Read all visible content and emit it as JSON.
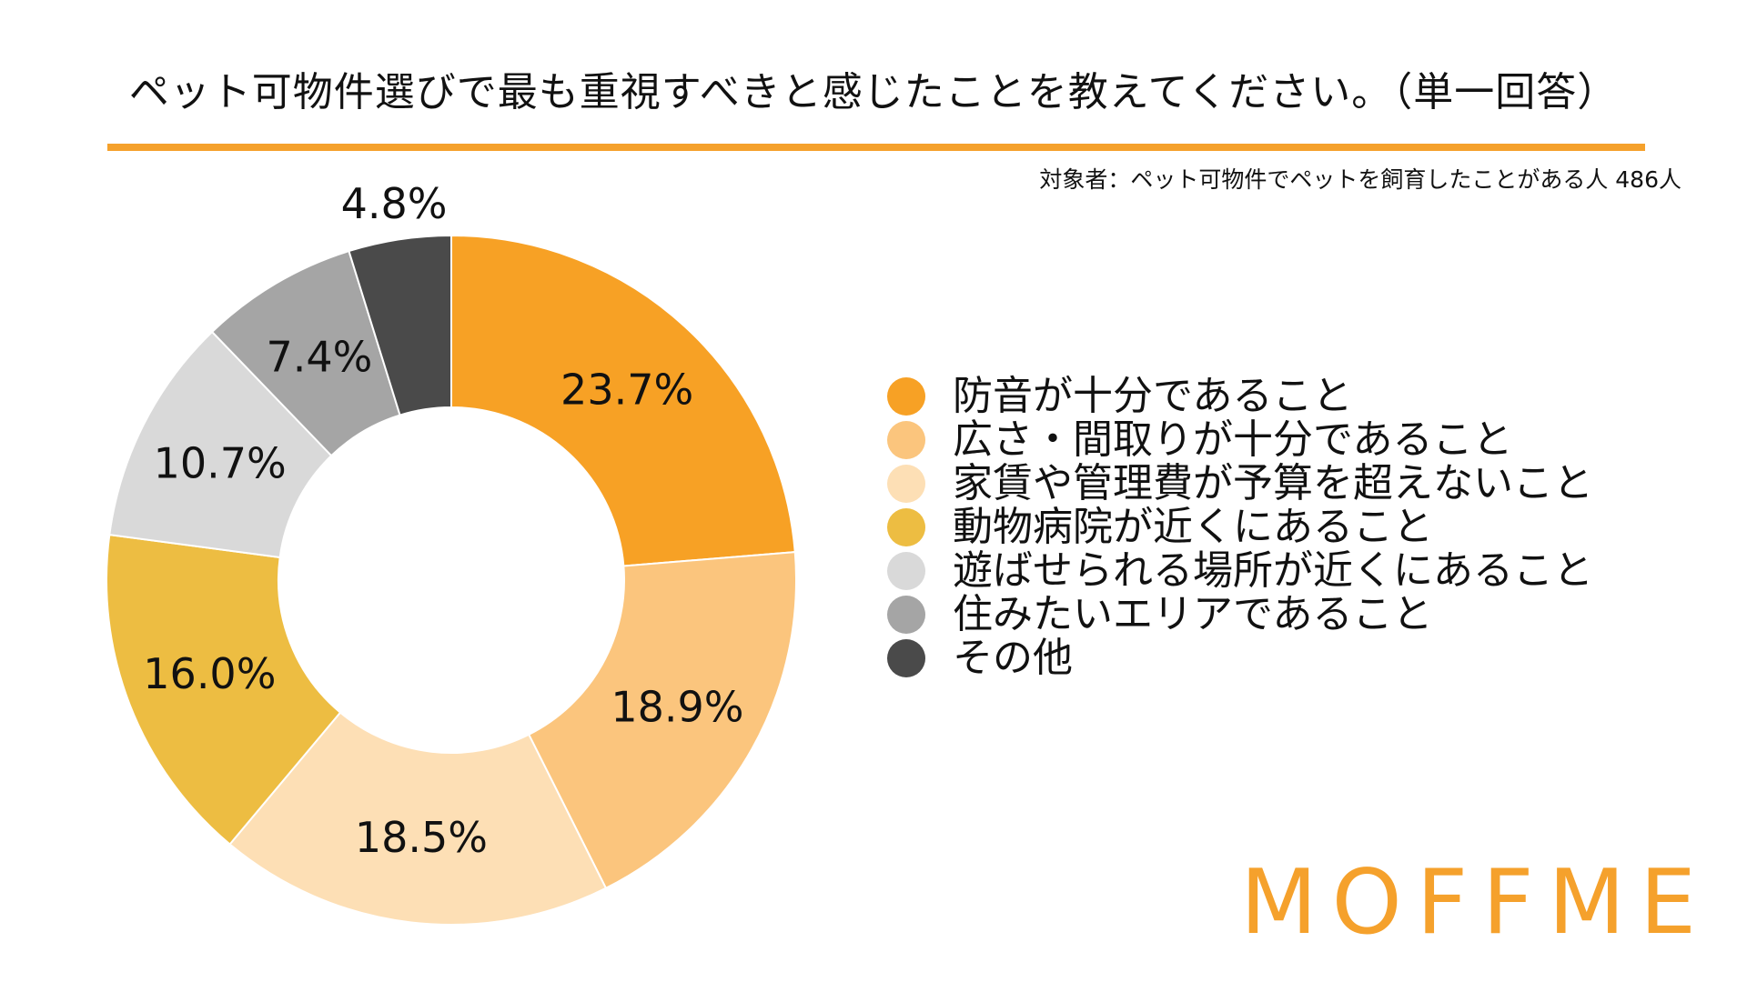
{
  "header": {
    "title": "ペット可物件選びで最も重視すべきと感じたことを教えてください。（単一回答）",
    "subtitle": "対象者：ペット可物件でペットを飼育したことがある人 486人",
    "accent_color": "#F5A12C"
  },
  "chart_data": {
    "type": "pie",
    "donut": true,
    "title": "ペット可物件選びで最も重視すべきと感じたことを教えてください。（単一回答）",
    "legend_position": "right",
    "slices": [
      {
        "label": "防音が十分であること",
        "value": 23.7,
        "value_label": "23.7%",
        "color": "#F7A125"
      },
      {
        "label": "広さ・間取りが十分であること",
        "value": 18.9,
        "value_label": "18.9%",
        "color": "#FBC57D"
      },
      {
        "label": "家賃や管理費が予算を超えないこと",
        "value": 18.5,
        "value_label": "18.5%",
        "color": "#FDDFB5"
      },
      {
        "label": "動物病院が近くにあること",
        "value": 16.0,
        "value_label": "16.0%",
        "color": "#EDBD42"
      },
      {
        "label": "遊ばせられる場所が近くにあること",
        "value": 10.7,
        "value_label": "10.7%",
        "color": "#D9D9D9"
      },
      {
        "label": "住みたいエリアであること",
        "value": 7.4,
        "value_label": "7.4%",
        "color": "#A5A5A5"
      },
      {
        "label": "その他",
        "value": 4.8,
        "value_label": "4.8%",
        "color": "#4A4A4A"
      }
    ]
  },
  "footer": {
    "logo_text": "MOFFME"
  }
}
